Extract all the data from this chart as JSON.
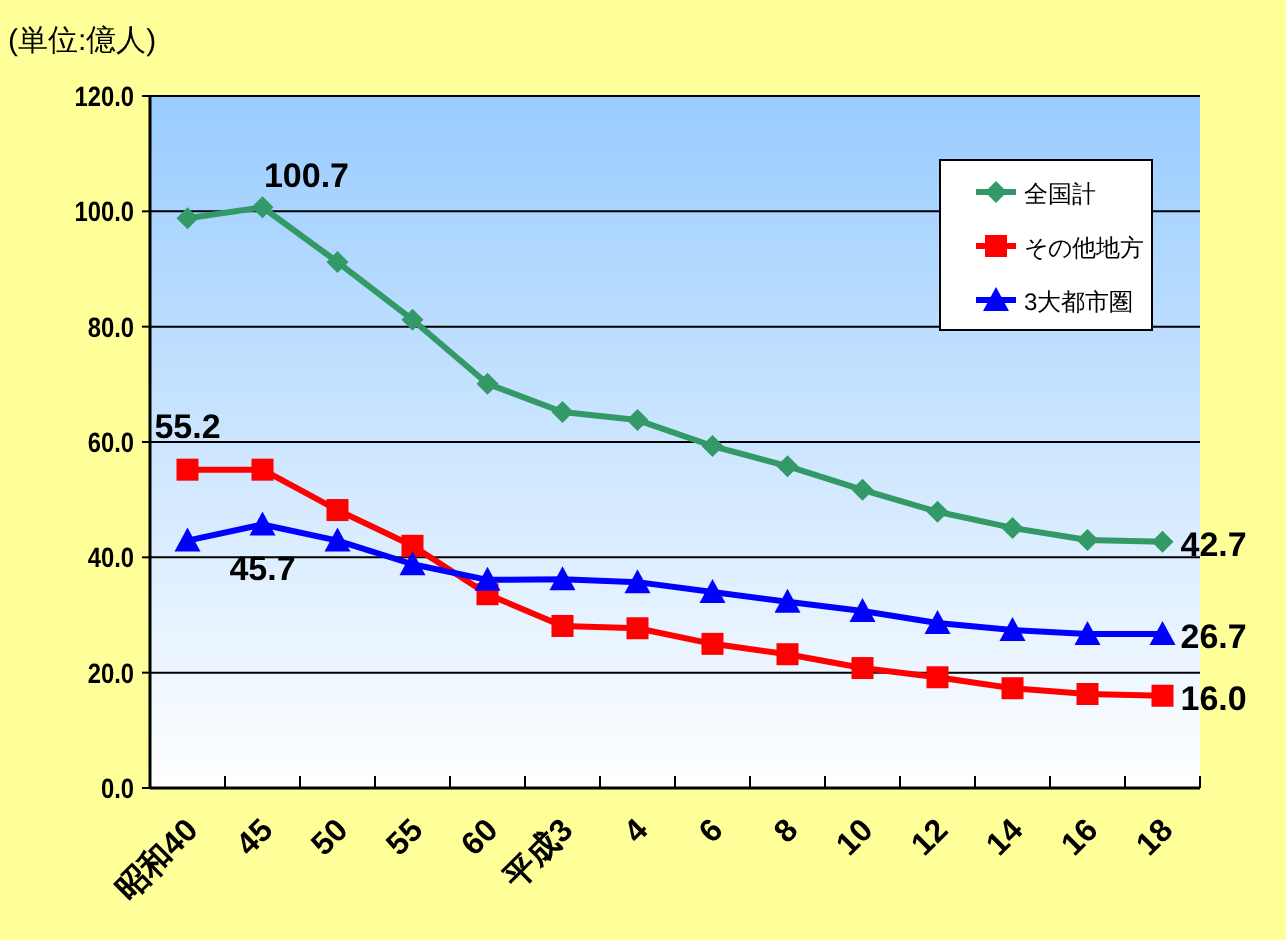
{
  "chart_data": {
    "type": "line",
    "ylabel": "(単位:億人)",
    "categories": [
      "昭和40",
      "45",
      "50",
      "55",
      "60",
      "平成3",
      "4",
      "6",
      "8",
      "10",
      "12",
      "14",
      "16",
      "18"
    ],
    "series": [
      {
        "name": "全国計",
        "color": "#339966",
        "marker": "diamond",
        "values": [
          98.8,
          100.7,
          91.2,
          81.2,
          70.1,
          65.2,
          63.8,
          59.3,
          55.8,
          51.7,
          47.9,
          45.1,
          43.0,
          42.7
        ],
        "value_labels": [
          null,
          "100.7",
          null,
          null,
          null,
          null,
          null,
          null,
          null,
          null,
          null,
          null,
          null,
          "42.7"
        ]
      },
      {
        "name": "その他地方",
        "color": "#ff0000",
        "marker": "square",
        "values": [
          55.2,
          55.2,
          48.2,
          42.0,
          33.6,
          28.1,
          27.7,
          25.0,
          23.2,
          20.8,
          19.2,
          17.3,
          16.3,
          16.0
        ],
        "value_labels": [
          "55.2",
          null,
          null,
          null,
          null,
          null,
          null,
          null,
          null,
          null,
          null,
          null,
          null,
          "16.0"
        ]
      },
      {
        "name": "3大都市圏",
        "color": "#0000ff",
        "marker": "triangle",
        "values": [
          42.9,
          45.7,
          42.9,
          38.8,
          36.1,
          36.2,
          35.7,
          34.0,
          32.3,
          30.7,
          28.6,
          27.4,
          26.7,
          26.7
        ],
        "value_labels": [
          null,
          "45.7",
          null,
          null,
          null,
          null,
          null,
          null,
          null,
          null,
          null,
          null,
          null,
          "26.7"
        ]
      }
    ],
    "ylim": [
      0,
      120
    ],
    "yticks": [
      {
        "value": 0,
        "label": "0.0"
      },
      {
        "value": 20,
        "label": "20.0"
      },
      {
        "value": 40,
        "label": "40.0"
      },
      {
        "value": 60,
        "label": "60.0"
      },
      {
        "value": 80,
        "label": "80.0"
      },
      {
        "value": 100,
        "label": "100.0"
      },
      {
        "value": 120,
        "label": "120.0"
      }
    ],
    "grid": "y",
    "legend": "top right"
  }
}
